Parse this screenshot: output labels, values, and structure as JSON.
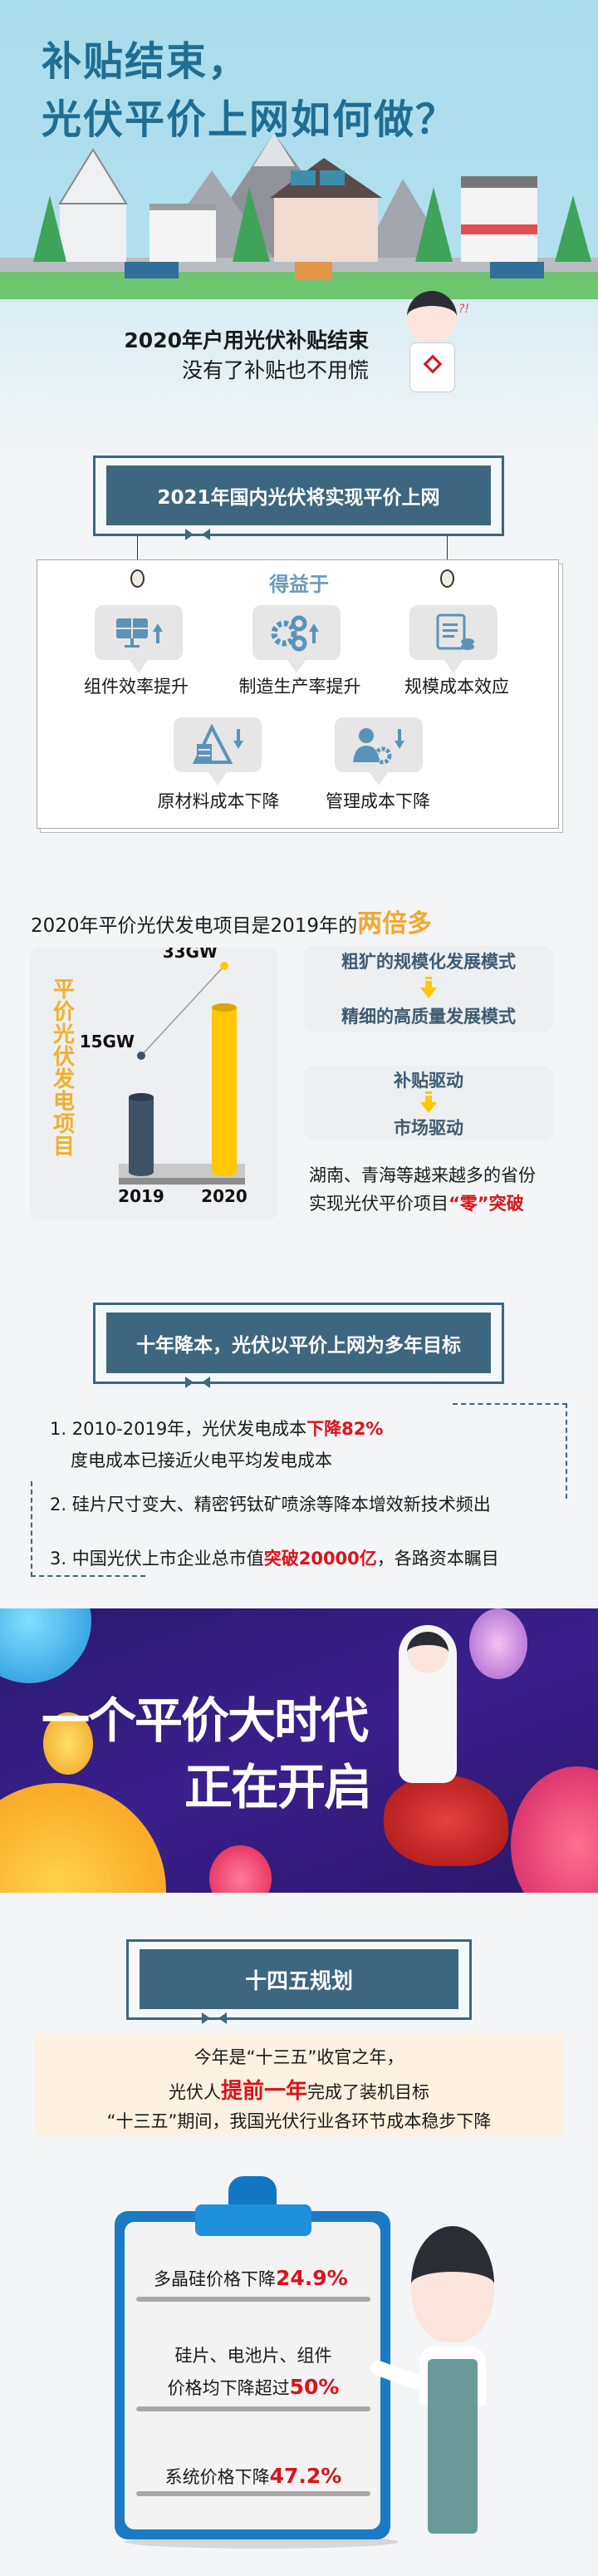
{
  "hero": {
    "title_line1": "补贴结束，",
    "title_line2": "光伏平价上网如何做？",
    "subtitle": "2020年户用光伏补贴结束",
    "caption": "没有了补贴也不用慌",
    "character_mark": "?!"
  },
  "section_parity": {
    "header": "2021年国内光伏将实现平价上网",
    "benefit_title": "得益于",
    "benefits": [
      {
        "label": "组件效率提升",
        "icon": "solar-panel-up-icon"
      },
      {
        "label": "制造生产率提升",
        "icon": "gears-up-icon"
      },
      {
        "label": "规模成本效应",
        "icon": "invoice-coins-icon"
      },
      {
        "label": "原材料成本下降",
        "icon": "materials-down-icon"
      },
      {
        "label": "管理成本下降",
        "icon": "manager-down-icon"
      }
    ]
  },
  "section_growth": {
    "headline": "2020年平价光伏发电项目是2019年的",
    "headline_highlight": "两倍多",
    "mode_from": "粗犷的规模化发展模式",
    "mode_to": "精细的高质量发展模式",
    "drive_from": "补贴驱动",
    "drive_to": "市场驱动",
    "note_line1": "湖南、青海等越来越多的省份",
    "note_line2_prefix": "实现光伏平价项目",
    "note_line2_highlight": "“零”突破",
    "colors": {
      "highlight": "#f0a830",
      "bar_2019": "#3f5368",
      "bar_2020": "#ffc800",
      "red": "#d9141b"
    }
  },
  "chart_data": {
    "type": "bar",
    "title": "平价光伏发电项目",
    "categories": [
      "2019",
      "2020"
    ],
    "values": [
      15,
      33
    ],
    "value_labels": [
      "15GW",
      "33GW"
    ],
    "unit": "GW"
  },
  "section_decade": {
    "header": "十年降本，光伏以平价上网为多年目标",
    "item1_prefix": "1. 2010-2019年，光伏发电成本",
    "item1_highlight": "下降82%",
    "item1_sub": "度电成本已接近火电平均发电成本",
    "item2": "2. 硅片尺寸变大、精密钙钛矿喷涂等降本增效新技术频出",
    "item3_prefix": "3. 中国光伏上市企业总市值",
    "item3_highlight": "突破20000亿",
    "item3_suffix": "，各路资本瞩目"
  },
  "banner": {
    "line1": "一个平价大时代",
    "line2": "正在开启"
  },
  "section_plan": {
    "header": "十四五规划",
    "line1": "今年是“十三五”收官之年，",
    "line2_prefix": "光伏人",
    "line2_highlight": "提前一年",
    "line2_suffix": "完成了装机目标",
    "line3": "“十三五”期间，我国光伏行业各环节成本稳步下降"
  },
  "clipboard": {
    "item1_prefix": "多晶硅价格下降",
    "item1_value": "24.9%",
    "item2_line1": "硅片、电池片、组件",
    "item2_prefix": "价格均下降超过",
    "item2_value": "50%",
    "item3_prefix": "系统价格下降",
    "item3_value": "47.2%"
  }
}
